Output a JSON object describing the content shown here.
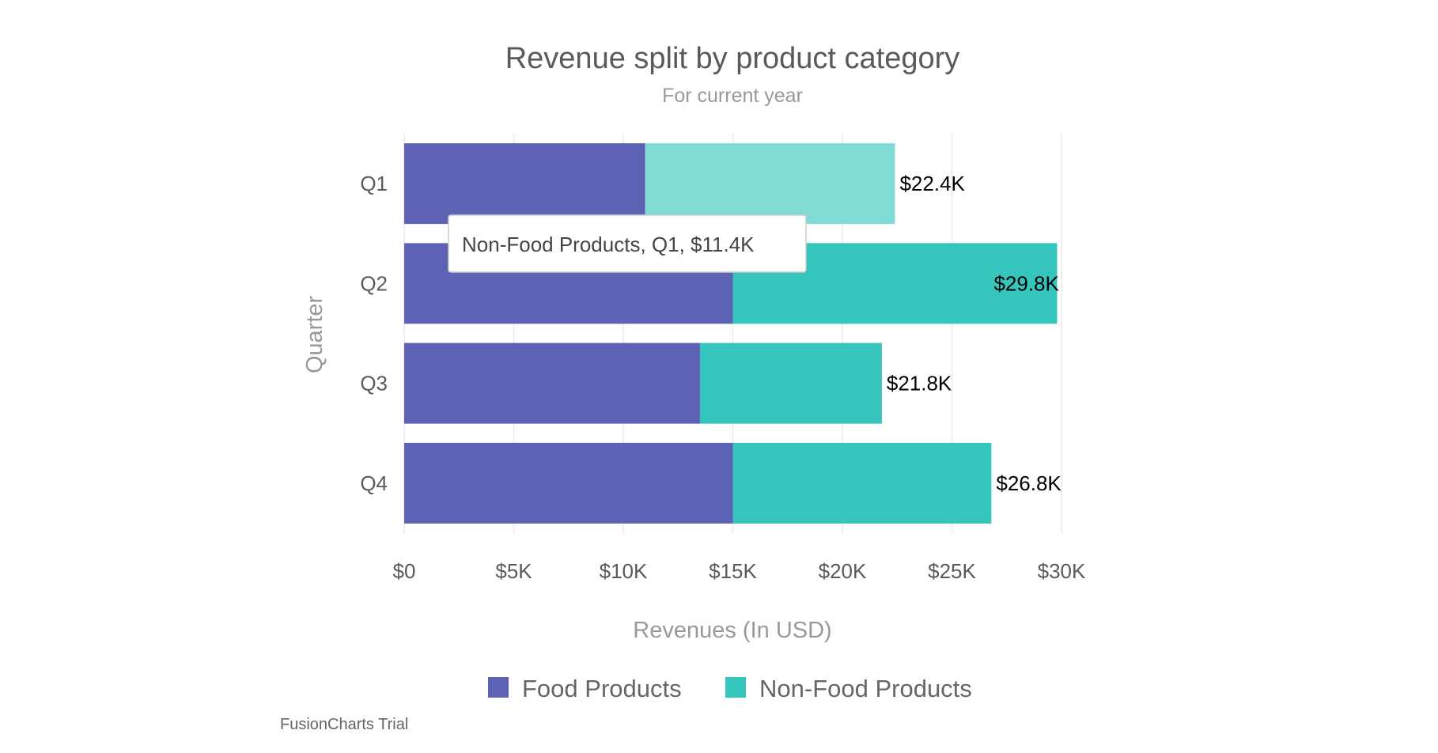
{
  "chart_data": {
    "type": "bar",
    "orientation": "horizontal",
    "stacked": true,
    "title": "Revenue split by product category",
    "subtitle": "For current year",
    "xlabel": "Revenues (In USD)",
    "ylabel": "Quarter",
    "categories": [
      "Q1",
      "Q2",
      "Q3",
      "Q4"
    ],
    "series": [
      {
        "name": "Food Products",
        "color": "#5D62B5",
        "values": [
          11000,
          15000,
          13500,
          15000
        ]
      },
      {
        "name": "Non-Food Products",
        "color": "#36C5BC",
        "values": [
          11400,
          14800,
          8300,
          11800
        ]
      }
    ],
    "totals_labels": [
      "$22.4K",
      "$29.8K",
      "$21.8K",
      "$26.8K"
    ],
    "xlim": [
      0,
      30000
    ],
    "xticks": [
      0,
      5000,
      10000,
      15000,
      20000,
      25000,
      30000
    ],
    "xtick_labels": [
      "$0",
      "$5K",
      "$10K",
      "$15K",
      "$20K",
      "$25K",
      "$30K"
    ],
    "grid": true,
    "legend_position": "bottom",
    "hover_color": "#80DBD5",
    "tooltip": "Non-Food Products, Q1, $11.4K",
    "hovered": {
      "series": 1,
      "category": 0
    }
  },
  "watermark": "FusionCharts Trial"
}
